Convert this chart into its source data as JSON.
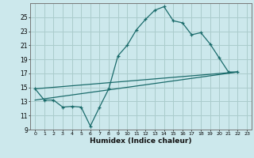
{
  "xlabel": "Humidex (Indice chaleur)",
  "bg_color": "#cce8ec",
  "grid_color": "#aacccc",
  "line_color": "#1a6b6b",
  "xlim": [
    -0.5,
    23.5
  ],
  "ylim": [
    9,
    27
  ],
  "xticks": [
    0,
    1,
    2,
    3,
    4,
    5,
    6,
    7,
    8,
    9,
    10,
    11,
    12,
    13,
    14,
    15,
    16,
    17,
    18,
    19,
    20,
    21,
    22,
    23
  ],
  "yticks": [
    9,
    11,
    13,
    15,
    17,
    19,
    21,
    23,
    25
  ],
  "series_main": {
    "x": [
      0,
      1,
      2,
      3,
      4,
      5,
      6,
      7,
      8,
      9,
      10,
      11,
      12,
      13,
      14,
      15,
      16,
      17,
      18,
      19,
      20,
      21,
      22
    ],
    "y": [
      14.8,
      13.2,
      13.2,
      12.2,
      12.3,
      12.2,
      9.5,
      12.2,
      14.8,
      19.5,
      21.0,
      23.2,
      24.7,
      26.0,
      26.5,
      24.5,
      24.2,
      22.5,
      22.8,
      21.2,
      19.2,
      17.2,
      17.2
    ]
  },
  "series_upper": {
    "x": [
      0,
      22
    ],
    "y": [
      14.8,
      17.2
    ]
  },
  "series_lower": {
    "x": [
      0,
      22
    ],
    "y": [
      13.2,
      17.2
    ]
  }
}
